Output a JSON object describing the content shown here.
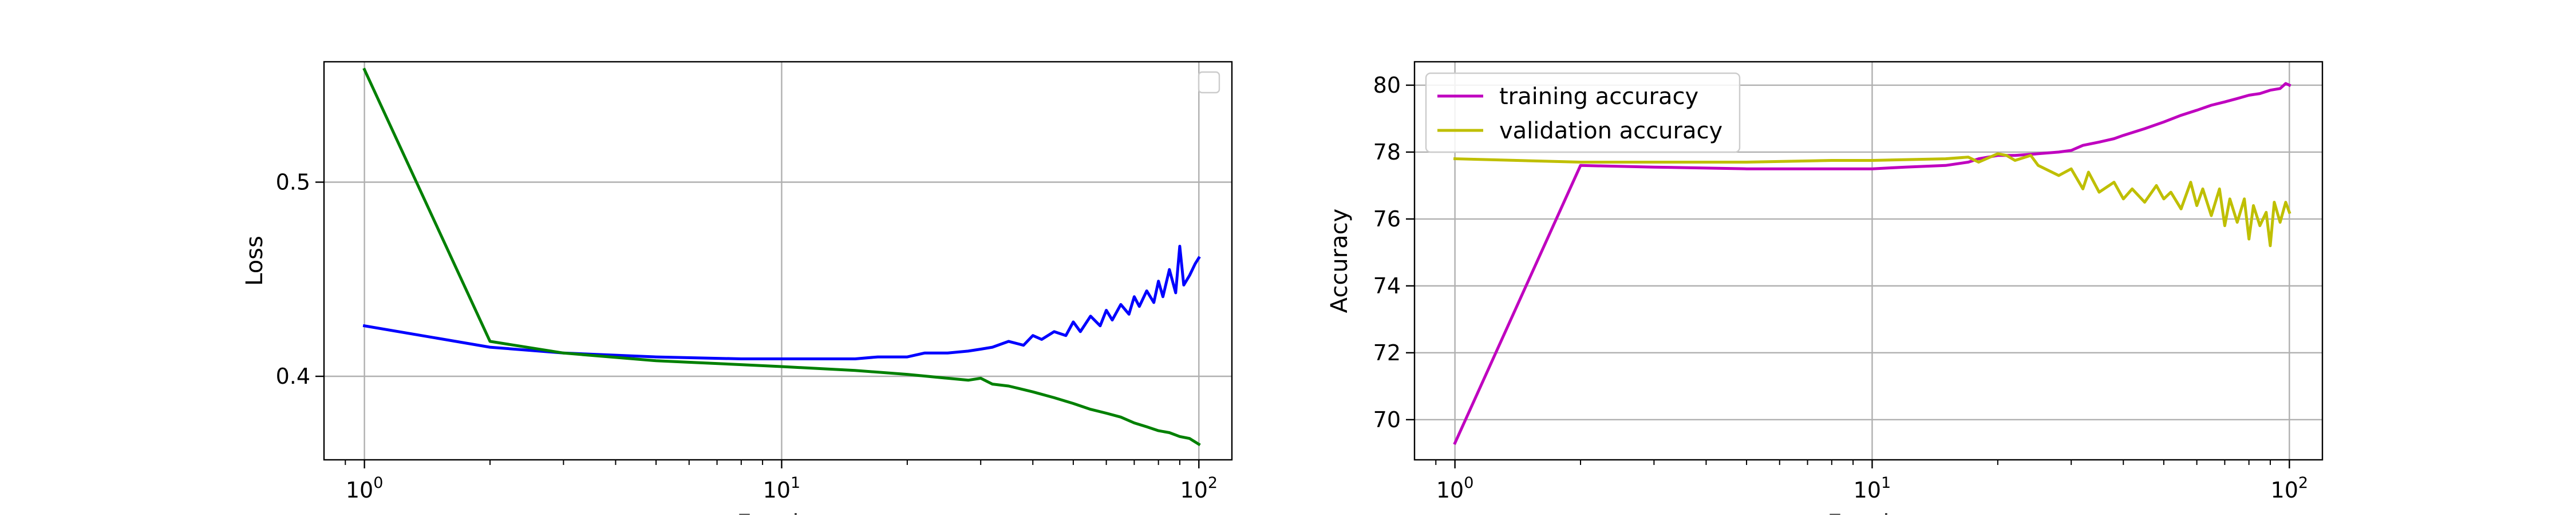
{
  "chart_data": [
    {
      "type": "line",
      "xlabel": "Epochs",
      "ylabel": "Loss",
      "xscale": "log",
      "xlim": [
        0.8,
        120
      ],
      "ylim": [
        0.357,
        0.562
      ],
      "xticks": [
        1,
        10,
        100
      ],
      "xtick_labels": [
        {
          "base": "10",
          "exp": "0"
        },
        {
          "base": "10",
          "exp": "1"
        },
        {
          "base": "10",
          "exp": "2"
        }
      ],
      "yticks": [
        0.4,
        0.5
      ],
      "ytick_labels": [
        "0.4",
        "0.5"
      ],
      "grid": true,
      "legend": {
        "placement": "top-right",
        "entries": []
      },
      "series": [
        {
          "color": "#0000ff",
          "x": [
            1,
            2,
            3,
            5,
            8,
            10,
            15,
            17,
            20,
            22,
            25,
            28,
            30,
            32,
            35,
            38,
            40,
            42,
            45,
            48,
            50,
            52,
            55,
            58,
            60,
            62,
            65,
            68,
            70,
            72,
            75,
            78,
            80,
            82,
            85,
            88,
            90,
            92,
            95,
            98,
            100
          ],
          "y": [
            0.426,
            0.415,
            0.412,
            0.41,
            0.409,
            0.409,
            0.409,
            0.41,
            0.41,
            0.412,
            0.412,
            0.413,
            0.414,
            0.415,
            0.418,
            0.416,
            0.421,
            0.419,
            0.423,
            0.421,
            0.428,
            0.423,
            0.431,
            0.426,
            0.434,
            0.429,
            0.437,
            0.432,
            0.441,
            0.436,
            0.444,
            0.438,
            0.449,
            0.441,
            0.455,
            0.443,
            0.467,
            0.447,
            0.452,
            0.458,
            0.461
          ]
        },
        {
          "color": "#008000",
          "x": [
            1,
            2,
            3,
            5,
            8,
            10,
            15,
            20,
            25,
            28,
            30,
            32,
            35,
            40,
            45,
            50,
            55,
            60,
            65,
            70,
            75,
            80,
            85,
            90,
            95,
            100
          ],
          "y": [
            0.558,
            0.418,
            0.412,
            0.408,
            0.406,
            0.405,
            0.403,
            0.401,
            0.399,
            0.398,
            0.399,
            0.396,
            0.395,
            0.392,
            0.389,
            0.386,
            0.383,
            0.381,
            0.379,
            0.376,
            0.374,
            0.372,
            0.371,
            0.369,
            0.368,
            0.365
          ]
        }
      ]
    },
    {
      "type": "line",
      "xlabel": "Epochs",
      "ylabel": "Accuracy",
      "xscale": "log",
      "xlim": [
        0.8,
        120
      ],
      "ylim": [
        68.8,
        80.7
      ],
      "xticks": [
        1,
        10,
        100
      ],
      "xtick_labels": [
        {
          "base": "10",
          "exp": "0"
        },
        {
          "base": "10",
          "exp": "1"
        },
        {
          "base": "10",
          "exp": "2"
        }
      ],
      "yticks": [
        70,
        72,
        74,
        76,
        78,
        80
      ],
      "ytick_labels": [
        "70",
        "72",
        "74",
        "76",
        "78",
        "80"
      ],
      "grid": true,
      "legend": {
        "placement": "top-left",
        "entries": [
          "training accuracy",
          "validation accuracy"
        ]
      },
      "series": [
        {
          "name": "training accuracy",
          "color": "#bf00bf",
          "x": [
            1,
            2,
            3,
            5,
            8,
            10,
            12,
            15,
            17,
            18,
            20,
            22,
            25,
            28,
            30,
            32,
            35,
            38,
            40,
            45,
            50,
            55,
            60,
            65,
            70,
            75,
            80,
            85,
            90,
            95,
            98,
            100
          ],
          "y": [
            69.3,
            77.6,
            77.55,
            77.5,
            77.5,
            77.5,
            77.55,
            77.6,
            77.7,
            77.8,
            77.9,
            77.9,
            77.95,
            78.0,
            78.05,
            78.2,
            78.3,
            78.4,
            78.5,
            78.7,
            78.9,
            79.1,
            79.25,
            79.4,
            79.5,
            79.6,
            79.7,
            79.75,
            79.85,
            79.9,
            80.05,
            80.0
          ]
        },
        {
          "name": "validation accuracy",
          "color": "#bfbf00",
          "x": [
            1,
            2,
            3,
            5,
            8,
            10,
            15,
            17,
            18,
            20,
            21,
            22,
            24,
            25,
            28,
            30,
            32,
            33,
            35,
            38,
            40,
            42,
            45,
            48,
            50,
            52,
            55,
            58,
            60,
            62,
            65,
            68,
            70,
            72,
            75,
            78,
            80,
            82,
            85,
            88,
            90,
            92,
            95,
            98,
            100
          ],
          "y": [
            77.8,
            77.7,
            77.7,
            77.7,
            77.75,
            77.75,
            77.8,
            77.85,
            77.7,
            77.95,
            77.9,
            77.75,
            77.9,
            77.6,
            77.3,
            77.5,
            76.9,
            77.4,
            76.8,
            77.1,
            76.6,
            76.9,
            76.5,
            77.0,
            76.6,
            76.8,
            76.3,
            77.1,
            76.4,
            76.9,
            76.1,
            76.9,
            75.8,
            76.6,
            75.9,
            76.6,
            75.4,
            76.4,
            75.8,
            76.2,
            75.2,
            76.5,
            75.9,
            76.5,
            76.2
          ]
        }
      ]
    }
  ]
}
